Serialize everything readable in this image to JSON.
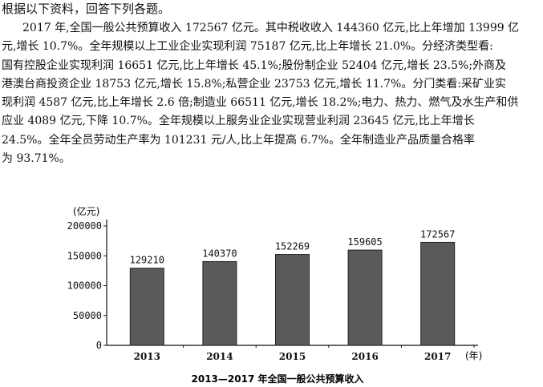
{
  "instruction": "根据以下资料，回答下列各题。",
  "passage_lines": [
    "2017 年,全国一般公共预算收入 172567 亿元。其中税收收入 144360 亿元,比上年增加 13999 亿",
    "元,增长 10.7%。全年规模以上工业企业实现利润 75187 亿元,比上年增长 21.0%。分经济类型看:",
    "国有控股企业实现利润 16651 亿元,比上年增长 45.1%;股份制企业 52404 亿元,增长 23.5%;外商及",
    "港澳台商投资企业 18753 亿元,增长 15.8%;私营企业 23753 亿元,增长 11.7%。分门类看:采矿业实",
    "现利润 4587 亿元,比上年增长 2.6 倍;制造业 66511 亿元,增长 18.2%;电力、热力、燃气及水生产和供",
    "应业 4089 亿元,下降 10.7%。全年规模以上服务业企业实现营业利润 23645 亿元,比上年增长",
    "24.5%。全年全员劳动生产率为 101231 元/人,比上年提高 6.7%。全年制造业产品质量合格率",
    "为 93.71%。"
  ],
  "chart_data": {
    "type": "bar",
    "title": "2013—2017 年全国一般公共预算收入",
    "y_unit": "(亿元)",
    "x_unit": "(年)",
    "categories": [
      "2013",
      "2014",
      "2015",
      "2016",
      "2017"
    ],
    "values": [
      129210,
      140370,
      152269,
      159605,
      172567
    ],
    "data_labels": [
      "129210",
      "140370",
      "152269",
      "159605",
      "172567"
    ],
    "ylim": [
      0,
      200000
    ],
    "yticks": [
      0,
      50000,
      100000,
      150000,
      200000
    ],
    "ytick_labels": [
      "0",
      "50000",
      "100000",
      "150000",
      "200000"
    ],
    "grid": false,
    "legend": "none",
    "bar_color": "#5a5a5a",
    "axis_color": "#111111"
  }
}
